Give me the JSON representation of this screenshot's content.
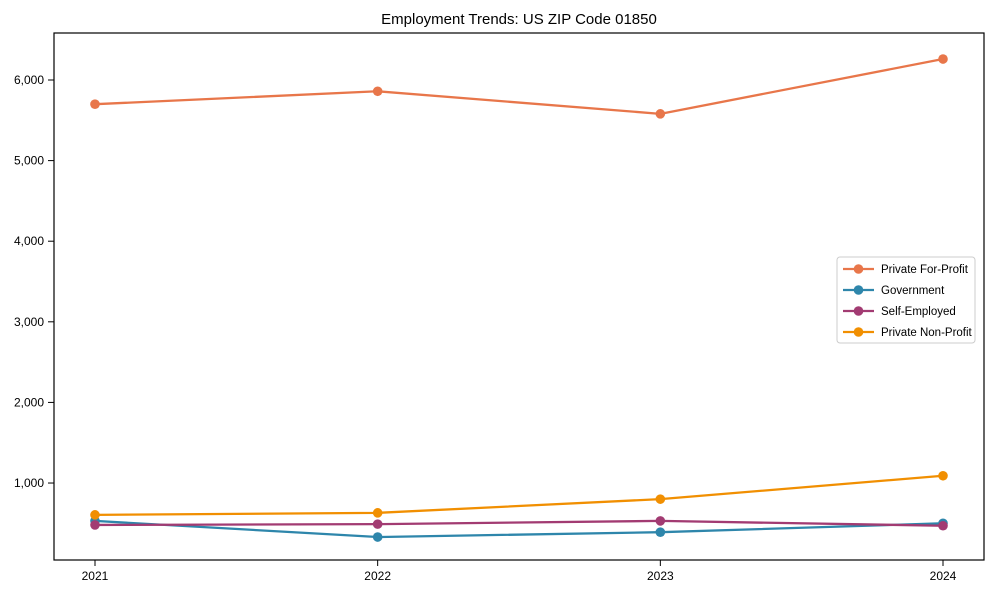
{
  "chart": {
    "title": "Employment Trends: US ZIP Code 01850"
  },
  "chart_data": {
    "type": "line",
    "title": "Employment Trends: US ZIP Code 01850",
    "x": [
      2021,
      2022,
      2023,
      2024
    ],
    "xticklabels": [
      "2021",
      "2022",
      "2023",
      "2024"
    ],
    "series": [
      {
        "name": "Private For-Profit",
        "color": "#E8764A",
        "values": [
          5700,
          5860,
          5580,
          6260
        ]
      },
      {
        "name": "Government",
        "color": "#2E86AB",
        "values": [
          530,
          330,
          390,
          500
        ]
      },
      {
        "name": "Self-Employed",
        "color": "#A23B72",
        "values": [
          480,
          490,
          530,
          470
        ]
      },
      {
        "name": "Private Non-Profit",
        "color": "#F18F01",
        "values": [
          605,
          630,
          800,
          1090
        ]
      }
    ],
    "xlabel": "",
    "ylabel": "",
    "xlim": [
      2020.855,
      2024.145
    ],
    "ylim": [
      45,
      6583
    ],
    "yticks": [
      1000,
      2000,
      3000,
      4000,
      5000,
      6000
    ],
    "ytick_format": "comma-thousands",
    "grid": false,
    "marker": "circle",
    "legend": {
      "position": "center-right",
      "entries": [
        "Private For-Profit",
        "Government",
        "Self-Employed",
        "Private Non-Profit"
      ]
    },
    "background": "#ffffff",
    "axis_color": "#000000",
    "legend_border_color": "#cccccc"
  }
}
